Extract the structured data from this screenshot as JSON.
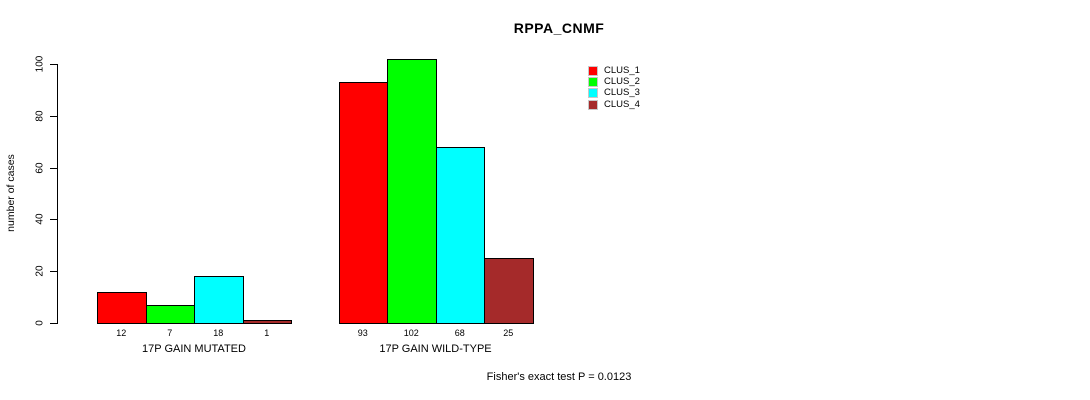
{
  "chart_data": {
    "type": "bar",
    "title": "RPPA_CNMF",
    "ylabel": "number of cases",
    "xlabel": "",
    "ylim": [
      0,
      100
    ],
    "yticks": [
      0,
      20,
      40,
      60,
      80,
      100
    ],
    "categories": [
      "17P GAIN MUTATED",
      "17P GAIN WILD-TYPE"
    ],
    "series": [
      {
        "name": "CLUS_1",
        "color": "#ff0000",
        "values": [
          12,
          93
        ]
      },
      {
        "name": "CLUS_2",
        "color": "#00ff00",
        "values": [
          7,
          102
        ]
      },
      {
        "name": "CLUS_3",
        "color": "#00ffff",
        "values": [
          18,
          68
        ]
      },
      {
        "name": "CLUS_4",
        "color": "#a52a2a",
        "values": [
          1,
          25
        ]
      }
    ],
    "show_bar_values": true,
    "grid": false,
    "legend_position": "top-right",
    "annotation": "Fisher's exact test P = 0.0123"
  }
}
